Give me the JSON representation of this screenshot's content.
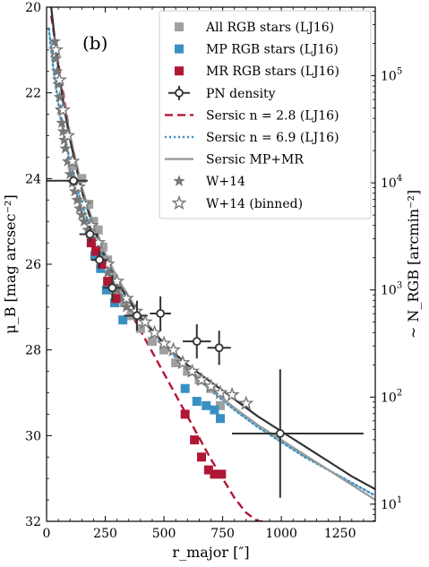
{
  "chart_data": {
    "type": "scatter",
    "panel_label": "(b)",
    "xlabel": "r_major [″]",
    "ylabel": "μ_B [mag arcsec⁻²]",
    "y2label": "~ N_RGB [arcmin⁻²]",
    "xlim": [
      0,
      1400
    ],
    "ylim": [
      32,
      20
    ],
    "y_inverted": true,
    "x_ticks": [
      "0",
      "250",
      "500",
      "750",
      "1000",
      "1250"
    ],
    "y_ticks": [
      "20",
      "22",
      "24",
      "26",
      "28",
      "30",
      "32"
    ],
    "y2_ticks": [
      {
        "base": "10",
        "exp": "1"
      },
      {
        "base": "10",
        "exp": "2"
      },
      {
        "base": "10",
        "exp": "3"
      },
      {
        "base": "10",
        "exp": "4"
      },
      {
        "base": "10",
        "exp": "5"
      }
    ],
    "y2_log_scale": true,
    "legend_position": "top-right",
    "series": [
      {
        "name": "All RGB stars (LJ16)",
        "kind": "marker",
        "marker": "square",
        "color": "#a0a0a0",
        "points": [
          [
            110,
            23.7
          ],
          [
            150,
            24.0
          ],
          [
            180,
            24.6
          ],
          [
            200,
            25.0
          ],
          [
            220,
            25.2
          ],
          [
            240,
            25.6
          ],
          [
            260,
            25.9
          ],
          [
            280,
            26.3
          ],
          [
            300,
            26.6
          ],
          [
            330,
            26.9
          ],
          [
            360,
            27.2
          ],
          [
            400,
            27.5
          ],
          [
            450,
            27.8
          ],
          [
            500,
            28.0
          ],
          [
            550,
            28.3
          ],
          [
            600,
            28.5
          ],
          [
            650,
            28.7
          ],
          [
            700,
            28.9
          ],
          [
            740,
            29.3
          ]
        ]
      },
      {
        "name": "MP RGB stars (LJ16)",
        "kind": "marker",
        "marker": "square",
        "color": "#3a8fc2",
        "points": [
          [
            205,
            25.8
          ],
          [
            230,
            26.1
          ],
          [
            255,
            26.6
          ],
          [
            290,
            26.9
          ],
          [
            325,
            27.3
          ],
          [
            590,
            28.9
          ],
          [
            640,
            29.2
          ],
          [
            680,
            29.3
          ],
          [
            715,
            29.4
          ],
          [
            740,
            29.6
          ]
        ]
      },
      {
        "name": "MR RGB stars (LJ16)",
        "kind": "marker",
        "marker": "square",
        "color": "#b01735",
        "points": [
          [
            190,
            25.5
          ],
          [
            210,
            25.7
          ],
          [
            235,
            26.0
          ],
          [
            260,
            26.4
          ],
          [
            295,
            26.8
          ],
          [
            590,
            29.5
          ],
          [
            630,
            30.1
          ],
          [
            660,
            30.5
          ],
          [
            690,
            30.8
          ],
          [
            715,
            30.9
          ],
          [
            745,
            30.9
          ]
        ]
      },
      {
        "name": "PN density",
        "kind": "errorbar",
        "color": "#333333",
        "points": [
          {
            "x": 115,
            "y": 24.05,
            "xerr": [
              115,
              60
            ],
            "yerr": [
              0.0,
              0.0
            ]
          },
          {
            "x": 185,
            "y": 25.3,
            "xerr": [
              45,
              35
            ],
            "yerr": [
              0.2,
              0.2
            ]
          },
          {
            "x": 225,
            "y": 25.9,
            "xerr": [
              35,
              35
            ],
            "yerr": [
              0.2,
              0.2
            ]
          },
          {
            "x": 280,
            "y": 26.55,
            "xerr": [
              40,
              40
            ],
            "yerr": [
              0.3,
              0.3
            ]
          },
          {
            "x": 385,
            "y": 27.2,
            "xerr": [
              55,
              45
            ],
            "yerr": [
              0.35,
              0.35
            ]
          },
          {
            "x": 485,
            "y": 27.15,
            "xerr": [
              45,
              45
            ],
            "yerr": [
              0.4,
              0.4
            ]
          },
          {
            "x": 640,
            "y": 27.8,
            "xerr": [
              60,
              60
            ],
            "yerr": [
              0.4,
              0.4
            ]
          },
          {
            "x": 735,
            "y": 27.95,
            "xerr": [
              50,
              50
            ],
            "yerr": [
              0.4,
              0.4
            ]
          },
          {
            "x": 995,
            "y": 29.95,
            "xerr": [
              205,
              355
            ],
            "yerr": [
              1.5,
              1.5
            ]
          }
        ]
      },
      {
        "name": "Sersic n = 2.8 (LJ16)",
        "kind": "line",
        "dash": "dashed",
        "color": "#b01735",
        "x": [
          20,
          50,
          100,
          150,
          200,
          250,
          300,
          350,
          400,
          450,
          500,
          550,
          600,
          650,
          700,
          750,
          800,
          850,
          900,
          920
        ],
        "y": [
          20.2,
          21.3,
          23.0,
          24.2,
          25.1,
          25.85,
          26.5,
          27.05,
          27.55,
          28.05,
          28.55,
          29.05,
          29.55,
          30.05,
          30.55,
          31.0,
          31.45,
          31.8,
          32.0,
          32.0
        ]
      },
      {
        "name": "Sersic n = 6.9 (LJ16)",
        "kind": "line",
        "dash": "dotted",
        "color": "#3a8fc2",
        "x": [
          10,
          30,
          60,
          100,
          150,
          200,
          250,
          300,
          400,
          500,
          600,
          700,
          800,
          900,
          1000,
          1100,
          1200,
          1300,
          1400
        ],
        "y": [
          20.5,
          21.5,
          22.6,
          23.6,
          24.6,
          25.35,
          25.95,
          26.45,
          27.25,
          27.9,
          28.45,
          28.95,
          29.4,
          29.8,
          30.15,
          30.5,
          30.8,
          31.1,
          31.4
        ]
      },
      {
        "name": "Sersic MP+MR",
        "kind": "line",
        "dash": "solid",
        "color": "#999999",
        "x": [
          20,
          40,
          70,
          100,
          150,
          200,
          250,
          300,
          400,
          500,
          600,
          700,
          800,
          900,
          1000,
          1100,
          1200,
          1300,
          1400
        ],
        "y": [
          20.0,
          21.0,
          22.1,
          23.0,
          24.2,
          25.05,
          25.75,
          26.3,
          27.2,
          27.85,
          28.4,
          28.9,
          29.35,
          29.75,
          30.1,
          30.45,
          30.8,
          31.15,
          31.5
        ]
      },
      {
        "name": "PN density fit",
        "kind": "line",
        "dash": "solid",
        "color": "#333333",
        "thick": true,
        "x": [
          20,
          40,
          70,
          100,
          150,
          200,
          250,
          300,
          400,
          500,
          600,
          700,
          800,
          900,
          1000,
          1100,
          1200,
          1300,
          1400
        ],
        "y": [
          20.0,
          21.0,
          22.2,
          23.1,
          24.3,
          25.15,
          25.85,
          26.4,
          27.25,
          27.85,
          28.35,
          28.75,
          29.15,
          29.55,
          29.9,
          30.25,
          30.6,
          30.95,
          31.25
        ]
      },
      {
        "name": "W+14",
        "kind": "marker",
        "marker": "star-filled",
        "color": "#777777",
        "points": [
          [
            35,
            20.8
          ],
          [
            40,
            21.2
          ],
          [
            45,
            21.5
          ],
          [
            50,
            21.8
          ],
          [
            55,
            22.1
          ],
          [
            60,
            22.4
          ],
          [
            65,
            22.7
          ],
          [
            70,
            22.9
          ],
          [
            75,
            23.1
          ],
          [
            80,
            23.3
          ],
          [
            90,
            23.6
          ],
          [
            100,
            23.9
          ],
          [
            110,
            24.1
          ],
          [
            120,
            24.3
          ],
          [
            130,
            24.5
          ],
          [
            140,
            24.7
          ],
          [
            150,
            24.85
          ],
          [
            160,
            25.0
          ],
          [
            175,
            25.2
          ],
          [
            190,
            25.4
          ],
          [
            205,
            25.6
          ],
          [
            220,
            25.75
          ],
          [
            240,
            25.95
          ],
          [
            260,
            26.2
          ],
          [
            280,
            26.4
          ],
          [
            300,
            26.6
          ],
          [
            320,
            26.8
          ],
          [
            340,
            27.0
          ]
        ]
      },
      {
        "name": "W+14 (binned)",
        "kind": "marker",
        "marker": "star-open",
        "color": "#777777",
        "points": [
          [
            40,
            21.0
          ],
          [
            55,
            21.7
          ],
          [
            70,
            22.4
          ],
          [
            90,
            23.0
          ],
          [
            110,
            23.6
          ],
          [
            135,
            24.2
          ],
          [
            160,
            24.6
          ],
          [
            190,
            25.1
          ],
          [
            220,
            25.5
          ],
          [
            260,
            26.0
          ],
          [
            300,
            26.4
          ],
          [
            340,
            26.8
          ],
          [
            380,
            27.1
          ],
          [
            420,
            27.35
          ],
          [
            460,
            27.6
          ],
          [
            500,
            27.85
          ],
          [
            540,
            28.0
          ],
          [
            580,
            28.3
          ],
          [
            620,
            28.5
          ],
          [
            660,
            28.7
          ],
          [
            700,
            28.85
          ],
          [
            740,
            29.0
          ],
          [
            790,
            29.05
          ],
          [
            850,
            29.25
          ]
        ]
      }
    ],
    "legend_entries": [
      {
        "label": "All RGB stars (LJ16)",
        "symbol": "square",
        "color": "#a0a0a0"
      },
      {
        "label": "MP RGB stars (LJ16)",
        "symbol": "square",
        "color": "#3a8fc2"
      },
      {
        "label": "MR RGB stars (LJ16)",
        "symbol": "square",
        "color": "#b01735"
      },
      {
        "label": "PN density",
        "symbol": "errorbar",
        "color": "#333333"
      },
      {
        "label": "Sersic n = 2.8 (LJ16)",
        "symbol": "dashed",
        "color": "#b01735"
      },
      {
        "label": "Sersic n = 6.9 (LJ16)",
        "symbol": "dotted",
        "color": "#3a8fc2"
      },
      {
        "label": "Sersic MP+MR",
        "symbol": "solid",
        "color": "#999999"
      },
      {
        "label": "W+14",
        "symbol": "star-filled",
        "color": "#777777"
      },
      {
        "label": "W+14 (binned)",
        "symbol": "star-open",
        "color": "#777777"
      }
    ]
  }
}
